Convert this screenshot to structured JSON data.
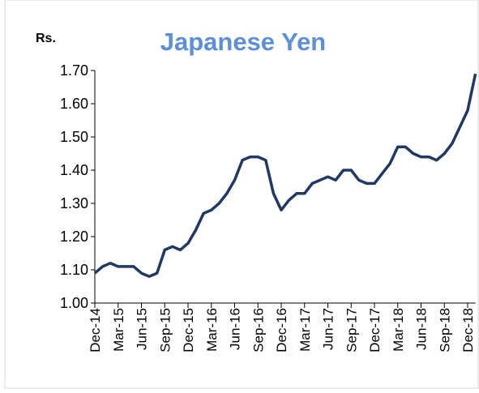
{
  "chart_data": {
    "type": "line",
    "title": "Japanese Yen",
    "y_label": "Rs.",
    "x": [
      "Dec-14",
      "Jan-15",
      "Feb-15",
      "Mar-15",
      "Apr-15",
      "May-15",
      "Jun-15",
      "Jul-15",
      "Aug-15",
      "Sep-15",
      "Oct-15",
      "Nov-15",
      "Dec-15",
      "Jan-16",
      "Feb-16",
      "Mar-16",
      "Apr-16",
      "May-16",
      "Jun-16",
      "Jul-16",
      "Aug-16",
      "Sep-16",
      "Oct-16",
      "Nov-16",
      "Dec-16",
      "Jan-17",
      "Feb-17",
      "Mar-17",
      "Apr-17",
      "May-17",
      "Jun-17",
      "Jul-17",
      "Aug-17",
      "Sep-17",
      "Oct-17",
      "Nov-17",
      "Dec-17",
      "Jan-18",
      "Feb-18",
      "Mar-18",
      "Apr-18",
      "May-18",
      "Jun-18",
      "Jul-18",
      "Aug-18",
      "Sep-18",
      "Oct-18",
      "Nov-18",
      "Dec-18",
      "Jan-19"
    ],
    "series": [
      {
        "name": "Japanese Yen",
        "color": "#1f3864",
        "values": [
          1.09,
          1.11,
          1.12,
          1.11,
          1.11,
          1.11,
          1.09,
          1.08,
          1.09,
          1.16,
          1.17,
          1.16,
          1.18,
          1.22,
          1.27,
          1.28,
          1.3,
          1.33,
          1.37,
          1.43,
          1.44,
          1.44,
          1.43,
          1.33,
          1.28,
          1.31,
          1.33,
          1.33,
          1.36,
          1.37,
          1.38,
          1.37,
          1.4,
          1.4,
          1.37,
          1.36,
          1.36,
          1.39,
          1.42,
          1.47,
          1.47,
          1.45,
          1.44,
          1.44,
          1.43,
          1.45,
          1.48,
          1.53,
          1.58,
          1.69
        ]
      }
    ],
    "xticks": [
      "Dec-14",
      "Mar-15",
      "Jun-15",
      "Sep-15",
      "Dec-15",
      "Mar-16",
      "Jun-16",
      "Sep-16",
      "Dec-16",
      "Mar-17",
      "Jun-17",
      "Sep-17",
      "Dec-17",
      "Mar-18",
      "Jun-18",
      "Sep-18",
      "Dec-18"
    ],
    "ylim": [
      1.0,
      1.7
    ],
    "yticks": [
      {
        "value": 1.0,
        "label": "1.00"
      },
      {
        "value": 1.1,
        "label": "1.10"
      },
      {
        "value": 1.2,
        "label": "1.20"
      },
      {
        "value": 1.3,
        "label": "1.30"
      },
      {
        "value": 1.4,
        "label": "1.40"
      },
      {
        "value": 1.5,
        "label": "1.50"
      },
      {
        "value": 1.6,
        "label": "1.60"
      },
      {
        "value": 1.7,
        "label": "1.70"
      }
    ],
    "grid": false
  }
}
